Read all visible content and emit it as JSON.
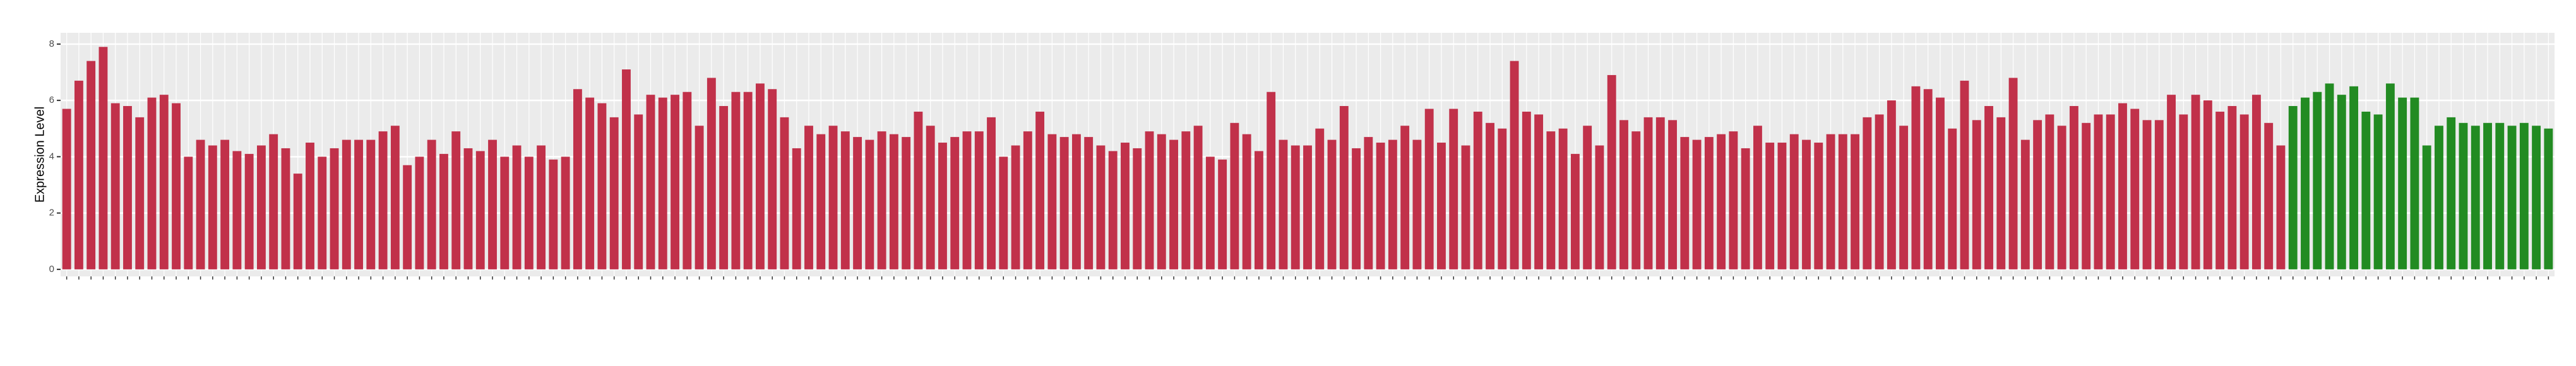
{
  "chart_data": {
    "type": "bar",
    "y_label": "Expression Level",
    "categories": [
      null,
      null,
      null,
      null,
      null,
      null,
      null,
      null,
      null,
      null,
      null,
      null,
      null,
      null,
      null,
      null,
      null,
      null,
      null,
      null,
      null,
      null,
      null,
      null,
      null,
      null,
      null,
      null,
      null,
      null,
      null,
      null,
      null,
      null,
      null,
      null,
      null,
      null,
      null,
      null,
      null,
      null,
      null,
      null,
      null,
      null,
      null,
      null,
      null,
      null,
      null,
      null,
      null,
      null,
      null,
      null,
      null,
      null,
      null,
      null,
      null,
      null,
      null,
      null,
      null,
      null,
      null,
      null,
      null,
      null,
      null,
      null,
      null,
      null,
      null,
      null,
      null,
      null,
      null,
      null,
      null,
      null,
      null,
      null,
      null,
      null,
      null,
      null,
      null,
      null,
      null,
      null,
      null,
      null,
      null,
      null,
      null,
      null,
      null,
      null,
      null,
      null,
      null,
      null,
      null,
      null,
      null,
      null,
      null,
      null,
      null,
      null,
      null,
      null,
      null,
      null,
      null,
      null,
      null,
      null,
      null,
      null,
      null,
      null,
      null,
      null,
      null,
      null,
      null,
      null,
      null,
      null,
      null,
      null,
      null,
      null,
      null,
      null,
      null,
      null,
      null,
      null,
      null,
      null,
      null,
      null,
      null,
      null,
      null,
      null,
      null,
      null,
      null,
      null,
      null,
      null,
      null,
      null,
      null,
      null,
      null,
      null,
      null,
      null,
      null,
      null,
      null,
      null,
      null,
      null,
      null,
      null,
      null,
      null,
      null,
      null,
      null,
      null,
      null,
      null,
      null,
      null,
      null,
      null,
      null,
      null,
      null,
      null,
      null,
      null,
      null,
      null,
      null,
      null,
      null,
      null,
      null,
      null,
      null,
      null,
      null,
      null,
      null,
      null,
      null
    ],
    "values": [
      5.7,
      6.7,
      7.4,
      7.9,
      5.9,
      5.8,
      5.4,
      6.1,
      6.2,
      5.9,
      4.0,
      4.6,
      4.4,
      4.6,
      4.2,
      4.1,
      4.4,
      4.8,
      4.3,
      3.4,
      4.5,
      4.0,
      4.3,
      4.6,
      4.6,
      4.6,
      4.9,
      5.1,
      3.7,
      4.0,
      4.6,
      4.1,
      4.9,
      4.3,
      4.2,
      4.6,
      4.0,
      4.4,
      4.0,
      4.4,
      3.9,
      4.0,
      6.4,
      6.1,
      5.9,
      5.4,
      7.1,
      5.5,
      6.2,
      6.1,
      6.2,
      6.3,
      5.1,
      6.8,
      5.8,
      6.3,
      6.3,
      6.6,
      6.4,
      5.4,
      4.3,
      5.1,
      4.8,
      5.1,
      4.9,
      4.7,
      4.6,
      4.9,
      4.8,
      4.7,
      5.6,
      5.1,
      4.5,
      4.7,
      4.9,
      4.9,
      5.4,
      4.0,
      4.4,
      4.9,
      5.6,
      4.8,
      4.7,
      4.8,
      4.7,
      4.4,
      4.2,
      4.5,
      4.3,
      4.9,
      4.8,
      4.6,
      4.9,
      5.1,
      4.0,
      3.9,
      5.2,
      4.8,
      4.2,
      6.3,
      4.6,
      4.4,
      4.4,
      5.0,
      4.6,
      5.8,
      4.3,
      4.7,
      4.5,
      4.6,
      5.1,
      4.6,
      5.7,
      4.5,
      5.7,
      4.4,
      5.6,
      5.2,
      5.0,
      7.4,
      5.6,
      5.5,
      4.9,
      5.0,
      4.1,
      5.1,
      4.4,
      6.9,
      5.3,
      4.9,
      5.4,
      5.4,
      5.3,
      4.7,
      4.6,
      4.7,
      4.8,
      4.9,
      4.3,
      5.1,
      4.5,
      4.5,
      4.8,
      4.6,
      4.5,
      4.8,
      4.8,
      4.8,
      5.4,
      5.5,
      6.0,
      5.1,
      6.5,
      6.4,
      6.1,
      5.0,
      6.7,
      5.3,
      5.8,
      5.4,
      6.8,
      4.6,
      5.3,
      5.5,
      5.1,
      5.8,
      5.2,
      5.5,
      5.5,
      5.9,
      5.7,
      5.3,
      5.3,
      6.2,
      5.5,
      6.2,
      6.0,
      5.6,
      5.8,
      5.5,
      6.2,
      5.2,
      4.4,
      5.8,
      6.1,
      6.3,
      6.6,
      6.2,
      6.5,
      5.6,
      5.5,
      6.6,
      6.1,
      6.1,
      4.4,
      5.1,
      5.4,
      5.2,
      5.1,
      5.2,
      5.2,
      5.1,
      5.2,
      5.1,
      5.0
    ],
    "colors": [
      "#c1314a",
      "#c1314a",
      "#c1314a",
      "#c1314a",
      "#c1314a",
      "#c1314a",
      "#c1314a",
      "#c1314a",
      "#c1314a",
      "#c1314a",
      "#c1314a",
      "#c1314a",
      "#c1314a",
      "#c1314a",
      "#c1314a",
      "#c1314a",
      "#c1314a",
      "#c1314a",
      "#c1314a",
      "#c1314a",
      "#c1314a",
      "#c1314a",
      "#c1314a",
      "#c1314a",
      "#c1314a",
      "#c1314a",
      "#c1314a",
      "#c1314a",
      "#c1314a",
      "#c1314a",
      "#c1314a",
      "#c1314a",
      "#c1314a",
      "#c1314a",
      "#c1314a",
      "#c1314a",
      "#c1314a",
      "#c1314a",
      "#c1314a",
      "#c1314a",
      "#c1314a",
      "#c1314a",
      "#c1314a",
      "#c1314a",
      "#c1314a",
      "#c1314a",
      "#c1314a",
      "#c1314a",
      "#c1314a",
      "#c1314a",
      "#c1314a",
      "#c1314a",
      "#c1314a",
      "#c1314a",
      "#c1314a",
      "#c1314a",
      "#c1314a",
      "#c1314a",
      "#c1314a",
      "#c1314a",
      "#c1314a",
      "#c1314a",
      "#c1314a",
      "#c1314a",
      "#c1314a",
      "#c1314a",
      "#c1314a",
      "#c1314a",
      "#c1314a",
      "#c1314a",
      "#c1314a",
      "#c1314a",
      "#c1314a",
      "#c1314a",
      "#c1314a",
      "#c1314a",
      "#c1314a",
      "#c1314a",
      "#c1314a",
      "#c1314a",
      "#c1314a",
      "#c1314a",
      "#c1314a",
      "#c1314a",
      "#c1314a",
      "#c1314a",
      "#c1314a",
      "#c1314a",
      "#c1314a",
      "#c1314a",
      "#c1314a",
      "#c1314a",
      "#c1314a",
      "#c1314a",
      "#c1314a",
      "#c1314a",
      "#c1314a",
      "#c1314a",
      "#c1314a",
      "#c1314a",
      "#c1314a",
      "#c1314a",
      "#c1314a",
      "#c1314a",
      "#c1314a",
      "#c1314a",
      "#c1314a",
      "#c1314a",
      "#c1314a",
      "#c1314a",
      "#c1314a",
      "#c1314a",
      "#c1314a",
      "#c1314a",
      "#c1314a",
      "#c1314a",
      "#c1314a",
      "#c1314a",
      "#c1314a",
      "#c1314a",
      "#c1314a",
      "#c1314a",
      "#c1314a",
      "#c1314a",
      "#c1314a",
      "#c1314a",
      "#c1314a",
      "#c1314a",
      "#c1314a",
      "#c1314a",
      "#c1314a",
      "#c1314a",
      "#c1314a",
      "#c1314a",
      "#c1314a",
      "#c1314a",
      "#c1314a",
      "#c1314a",
      "#c1314a",
      "#c1314a",
      "#c1314a",
      "#c1314a",
      "#c1314a",
      "#c1314a",
      "#c1314a",
      "#c1314a",
      "#c1314a",
      "#c1314a",
      "#c1314a",
      "#c1314a",
      "#c1314a",
      "#c1314a",
      "#c1314a",
      "#c1314a",
      "#c1314a",
      "#c1314a",
      "#c1314a",
      "#c1314a",
      "#c1314a",
      "#c1314a",
      "#c1314a",
      "#c1314a",
      "#c1314a",
      "#c1314a",
      "#c1314a",
      "#c1314a",
      "#c1314a",
      "#c1314a",
      "#c1314a",
      "#c1314a",
      "#c1314a",
      "#c1314a",
      "#c1314a",
      "#c1314a",
      "#c1314a",
      "#c1314a",
      "#c1314a",
      "#c1314a",
      "#c1314a",
      "#c1314a",
      "#c1314a",
      "#c1314a",
      "#c1314a",
      "#228b22",
      "#228b22",
      "#228b22",
      "#228b22",
      "#228b22",
      "#228b22",
      "#228b22",
      "#228b22",
      "#228b22",
      "#228b22",
      "#228b22",
      "#228b22",
      "#228b22",
      "#228b22",
      "#228b22",
      "#228b22",
      "#228b22",
      "#228b22",
      "#228b22",
      "#228b22",
      "#228b22",
      "#228b22"
    ],
    "ylim": [
      -0.25,
      8.4
    ],
    "yticks": [
      0,
      2,
      4,
      6,
      8
    ],
    "grid": true
  }
}
